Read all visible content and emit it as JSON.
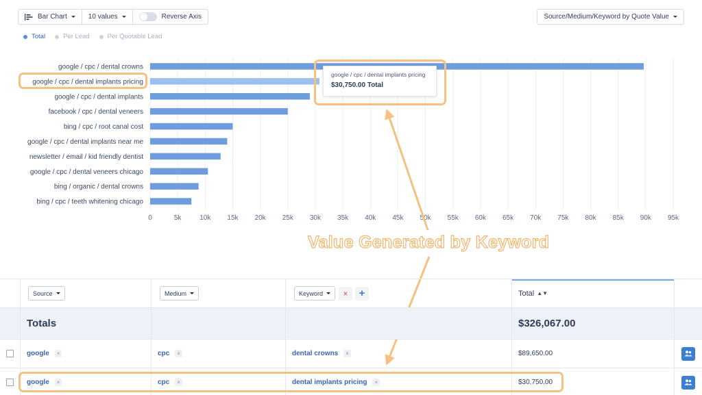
{
  "toolbar": {
    "chart_type": "Bar Chart",
    "values_count": "10 values",
    "reverse_axis": "Reverse Axis"
  },
  "report_select": "Source/Medium/Keyword by Quote Value",
  "legend": [
    {
      "label": "Total",
      "color": "#5b8fd6",
      "active": true
    },
    {
      "label": "Per Lead",
      "color": "#cbd3e0",
      "active": false
    },
    {
      "label": "Per Quotable Lead",
      "color": "#cbd3e0",
      "active": false
    }
  ],
  "chart_data": {
    "type": "bar",
    "orientation": "horizontal",
    "categories": [
      "google / cpc / dental crowns",
      "google / cpc / dental implants pricing",
      "google / cpc / dental implants",
      "facebook / cpc / dental veneers",
      "bing / cpc / root canal cost",
      "google / cpc / dental implants near me",
      "newsletter / email / kid friendly dentist",
      "google / cpc / dental veneers chicago",
      "bing / organic / dental crowns",
      "bing / cpc / teeth whitening chicago"
    ],
    "values": [
      89650,
      30750,
      29000,
      25000,
      15000,
      14000,
      12800,
      10500,
      8800,
      7500
    ],
    "highlighted_index": 1,
    "xlim": [
      0,
      95000
    ],
    "xticks": [
      0,
      5000,
      10000,
      15000,
      20000,
      25000,
      30000,
      35000,
      40000,
      45000,
      50000,
      55000,
      60000,
      65000,
      70000,
      75000,
      80000,
      85000,
      90000,
      95000
    ],
    "xtick_labels": [
      "0",
      "5k",
      "10k",
      "15k",
      "20k",
      "25k",
      "30k",
      "35k",
      "40k",
      "45k",
      "50k",
      "55k",
      "60k",
      "65k",
      "70k",
      "75k",
      "80k",
      "85k",
      "90k",
      "95k"
    ],
    "grid": true,
    "bar_color": "#6f9cdc",
    "highlight_color": "#9cc0ef"
  },
  "tooltip": {
    "title": "google / cpc / dental implants pricing",
    "value": "$30,750.00 Total"
  },
  "annotation": "Value Generated by Keyword",
  "annotation_color": "#f0b56a",
  "table": {
    "headers": {
      "source": "Source",
      "medium": "Medium",
      "keyword": "Keyword",
      "remove": "×",
      "add": "+",
      "total": "Total",
      "sort": "▲▼"
    },
    "totals": {
      "label": "Totals",
      "value": "$326,067.00"
    },
    "rows": [
      {
        "source": "google",
        "medium": "cpc",
        "keyword": "dental crowns",
        "total": "$89,650.00"
      },
      {
        "source": "google",
        "medium": "cpc",
        "keyword": "dental implants pricing",
        "total": "$30,750.00"
      }
    ]
  }
}
